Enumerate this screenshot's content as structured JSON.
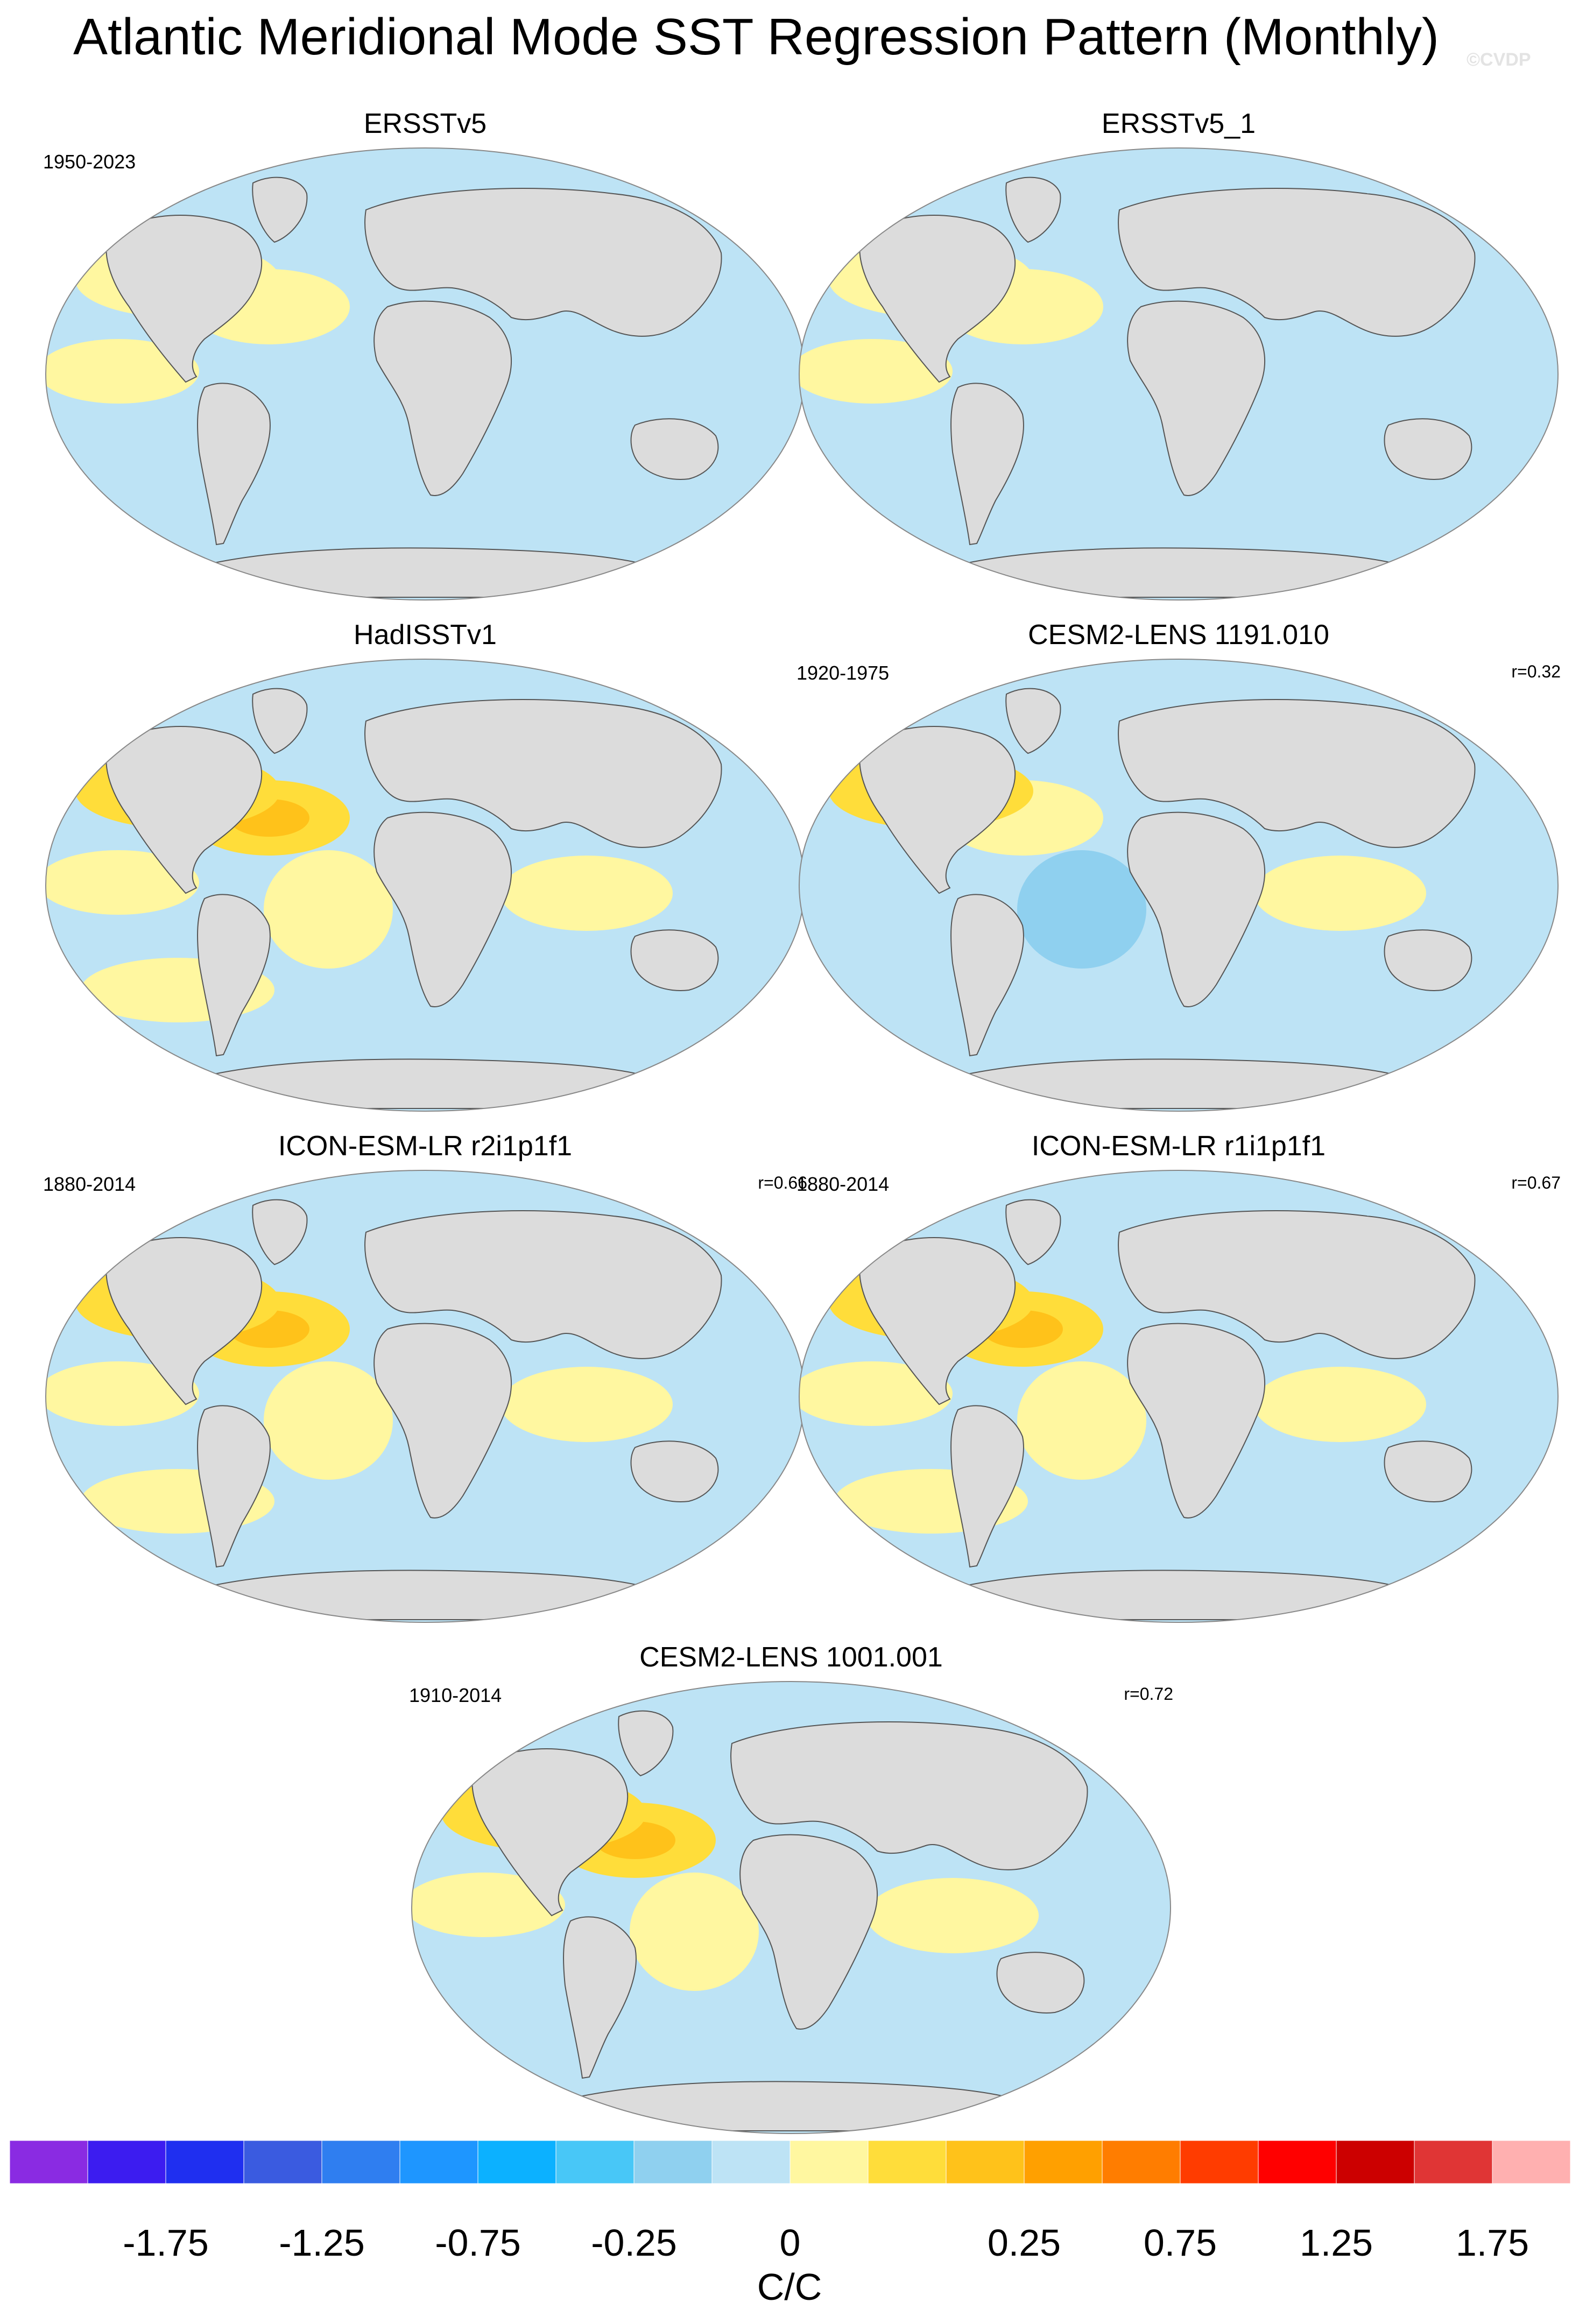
{
  "main_title": "Atlantic Meridional Mode SST Regression Pattern (Monthly)",
  "watermark": "©CVDP",
  "panels": [
    {
      "title": "ERSSTv5",
      "years": "1950-2023",
      "corr": "",
      "pattern": [
        1,
        0,
        1,
        1,
        0,
        0
      ]
    },
    {
      "title": "ERSSTv5_1",
      "years": "",
      "corr": "",
      "pattern": [
        1,
        0,
        1,
        1,
        0,
        0
      ]
    },
    {
      "title": "HadISSTv1",
      "years": "",
      "corr": "",
      "pattern": [
        2,
        1,
        2,
        1,
        1,
        1
      ]
    },
    {
      "title": "CESM2-LENS 1191.010",
      "years": "1920-1975",
      "corr": "r=0.32",
      "pattern": [
        1,
        -1,
        2,
        0,
        1,
        0
      ]
    },
    {
      "title": "ICON-ESM-LR r2i1p1f1",
      "years": "1880-2014",
      "corr": "r=0.66",
      "pattern": [
        2,
        1,
        2,
        1,
        1,
        1
      ]
    },
    {
      "title": "ICON-ESM-LR r1i1p1f1",
      "years": "1880-2014",
      "corr": "r=0.67",
      "pattern": [
        2,
        1,
        2,
        1,
        1,
        1
      ]
    },
    {
      "title": "CESM2-LENS 1001.001",
      "years": "1910-2014",
      "corr": "r=0.72",
      "pattern": [
        2,
        1,
        2,
        1,
        1,
        0
      ]
    }
  ],
  "colorbar": {
    "colors": [
      "#8a2be2",
      "#3c1cf0",
      "#1f2ff0",
      "#3a5be0",
      "#2f7ef0",
      "#1e96ff",
      "#0cb1ff",
      "#48c7f7",
      "#8fd0ef",
      "#bde3f5",
      "#fff7a0",
      "#ffdd3a",
      "#ffc21a",
      "#ffa000",
      "#ff7d00",
      "#ff3c00",
      "#ff0000",
      "#cc0000",
      "#e03535",
      "#ffb0b0"
    ],
    "tick_labels": [
      "-1.75",
      "-1.25",
      "-0.75",
      "-0.25",
      "0",
      "0.25",
      "0.75",
      "1.25",
      "1.75"
    ],
    "units": "C/C"
  }
}
